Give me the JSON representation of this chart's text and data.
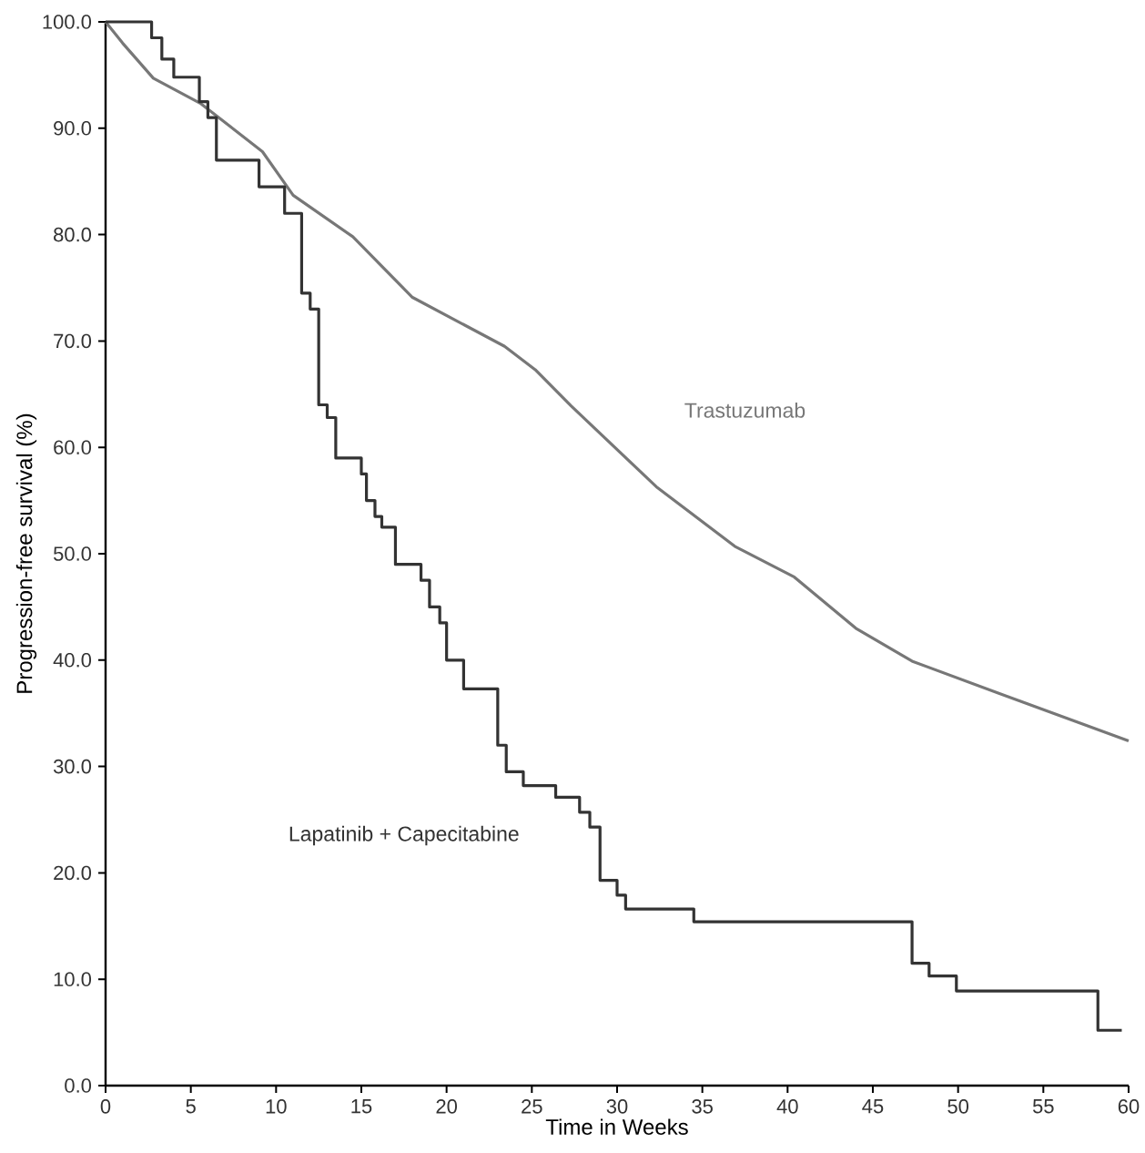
{
  "chart_data": {
    "type": "step",
    "xlabel": "Time in Weeks",
    "ylabel": "Progression-free survival (%)",
    "xlim": [
      0,
      60
    ],
    "ylim": [
      0,
      100
    ],
    "xticks": [
      0,
      5,
      10,
      15,
      20,
      25,
      30,
      35,
      40,
      45,
      50,
      55,
      60
    ],
    "yticks": [
      {
        "value": 0,
        "label": "0.0"
      },
      {
        "value": 10,
        "label": "10.0"
      },
      {
        "value": 20,
        "label": "20.0"
      },
      {
        "value": 30,
        "label": "30.0"
      },
      {
        "value": 40,
        "label": "40.0"
      },
      {
        "value": 50,
        "label": "50.0"
      },
      {
        "value": 60,
        "label": "60.0"
      },
      {
        "value": 70,
        "label": "70.0"
      },
      {
        "value": 80,
        "label": "80.0"
      },
      {
        "value": 90,
        "label": "90.0"
      },
      {
        "value": 100,
        "label": "100.0"
      }
    ],
    "grid": false,
    "legend": false,
    "marker": "none",
    "line_style": "solid",
    "series": [
      {
        "name": "Trastuzumab",
        "type": "line",
        "color": "#777777",
        "x": [
          0,
          1,
          2.8,
          5.6,
          9.2,
          11,
          14.5,
          18,
          23.4,
          25.2,
          27.3,
          32.3,
          36.9,
          40.4,
          44,
          47.3,
          53.7,
          60
        ],
        "values": [
          100,
          98,
          94.7,
          92.3,
          87.8,
          83.7,
          79.8,
          74.1,
          69.5,
          67.3,
          63.9,
          56.3,
          50.7,
          47.8,
          43,
          39.9,
          36.1,
          32.4
        ]
      },
      {
        "name": "Lapatinib + Capecitabine",
        "color": "#333333",
        "x": [
          0,
          2.7,
          3.3,
          4,
          5.5,
          6,
          6.5,
          8.5,
          9,
          10.5,
          11.5,
          12,
          12.5,
          13,
          13.5,
          15,
          15.3,
          15.8,
          16.2,
          17,
          18.5,
          19,
          19.6,
          20,
          21,
          23,
          23.5,
          24.5,
          26.4,
          27.8,
          28.4,
          29,
          30,
          30.5,
          34.5,
          47.3,
          48.3,
          49.9,
          58.2,
          59.6
        ],
        "values": [
          100,
          98.5,
          96.5,
          94.8,
          92.5,
          91,
          87,
          87,
          84.5,
          82,
          74.5,
          73,
          64,
          62.8,
          59,
          57.5,
          55,
          53.5,
          52.5,
          49,
          47.5,
          45,
          43.5,
          40,
          37.3,
          32,
          29.5,
          28.2,
          27.1,
          25.7,
          24.3,
          19.3,
          17.9,
          16.6,
          15.4,
          11.5,
          10.3,
          8.9,
          5.2,
          5.2
        ]
      }
    ]
  }
}
